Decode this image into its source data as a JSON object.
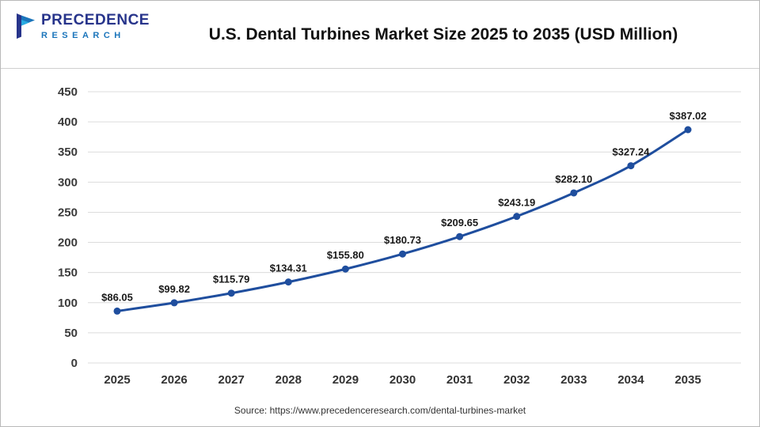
{
  "header": {
    "logo": {
      "line1": "PRECEDENCE",
      "line2": "RESEARCH"
    },
    "title": "U.S. Dental Turbines Market Size 2025 to 2035 (USD Million)"
  },
  "footer": {
    "source": "Source: https://www.precedenceresearch.com/dental-turbines-market"
  },
  "colors": {
    "line": "#1f4e9e",
    "marker": "#1f4e9e",
    "gridline": "#dcdcdc",
    "logo_dark_blue": "#27348b",
    "logo_light_blue": "#1b75bb",
    "label_text": "#1a1a1a"
  },
  "chart_data": {
    "type": "line",
    "title": "U.S. Dental Turbines Market Size 2025 to 2035 (USD Million)",
    "xlabel": "",
    "ylabel": "",
    "categories": [
      "2025",
      "2026",
      "2027",
      "2028",
      "2029",
      "2030",
      "2031",
      "2032",
      "2033",
      "2034",
      "2035"
    ],
    "series": [
      {
        "name": "U.S. Dental Turbines Market Size (USD Million)",
        "values": [
          86.05,
          99.82,
          115.79,
          134.31,
          155.8,
          180.73,
          209.65,
          243.19,
          282.1,
          327.24,
          387.02
        ]
      }
    ],
    "data_labels": [
      "$86.05",
      "$99.82",
      "$115.79",
      "$134.31",
      "$155.80",
      "$180.73",
      "$209.65",
      "$243.19",
      "$282.10",
      "$327.24",
      "$387.02"
    ],
    "ylim": [
      0,
      450
    ],
    "yticks": [
      0,
      50,
      100,
      150,
      200,
      250,
      300,
      350,
      400,
      450
    ],
    "grid": "horizontal",
    "legend": "none",
    "marker": "circle"
  }
}
